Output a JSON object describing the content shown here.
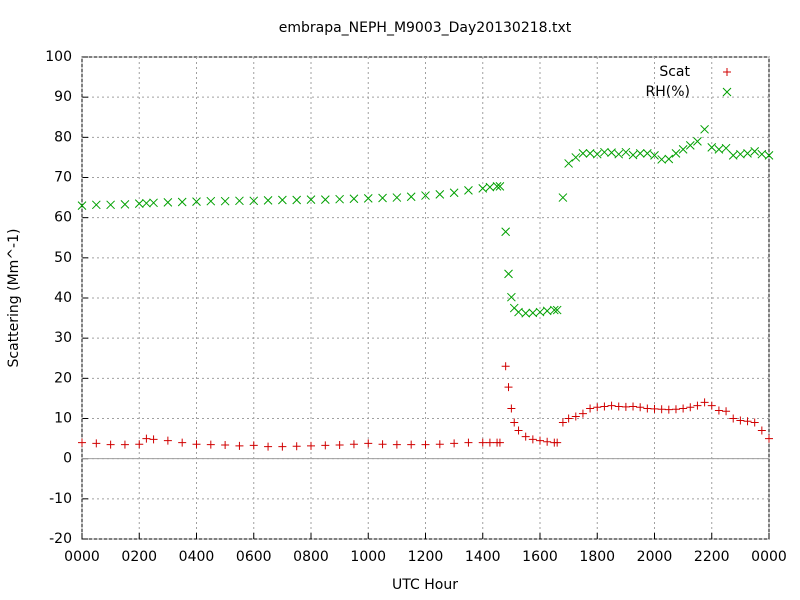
{
  "chart_data": {
    "type": "scatter",
    "title": "embrapa_NEPH_M9003_Day20130218.txt",
    "xlabel": "UTC Hour",
    "ylabel": "Scattering (Mm^-1)",
    "xlim": [
      0,
      24
    ],
    "ylim": [
      -20,
      100
    ],
    "xticks": [
      {
        "value": 0,
        "label": "0000"
      },
      {
        "value": 2,
        "label": "0200"
      },
      {
        "value": 4,
        "label": "0400"
      },
      {
        "value": 6,
        "label": "0600"
      },
      {
        "value": 8,
        "label": "0800"
      },
      {
        "value": 10,
        "label": "1000"
      },
      {
        "value": 12,
        "label": "1200"
      },
      {
        "value": 14,
        "label": "1400"
      },
      {
        "value": 16,
        "label": "1600"
      },
      {
        "value": 18,
        "label": "1800"
      },
      {
        "value": 20,
        "label": "2000"
      },
      {
        "value": 22,
        "label": "2200"
      },
      {
        "value": 24,
        "label": "0000"
      }
    ],
    "yticks": [
      -20,
      -10,
      0,
      10,
      20,
      30,
      40,
      50,
      60,
      70,
      80,
      90,
      100
    ],
    "grid": true,
    "legend": "top-right",
    "x": [
      0,
      0.5,
      1,
      1.5,
      2,
      2.25,
      2.5,
      3,
      3.5,
      4,
      4.5,
      5,
      5.5,
      6,
      6.5,
      7,
      7.5,
      8,
      8.5,
      9,
      9.5,
      10,
      10.5,
      11,
      11.5,
      12,
      12.5,
      13,
      13.5,
      14,
      14.25,
      14.5,
      14.6,
      14.8,
      14.9,
      15,
      15.1,
      15.25,
      15.5,
      15.75,
      16,
      16.25,
      16.5,
      16.6,
      16.8,
      17,
      17.25,
      17.5,
      17.75,
      18,
      18.25,
      18.5,
      18.75,
      19,
      19.25,
      19.5,
      19.75,
      20,
      20.25,
      20.5,
      20.75,
      21,
      21.25,
      21.5,
      21.75,
      22,
      22.25,
      22.5,
      22.75,
      23,
      23.25,
      23.5,
      23.75,
      24
    ],
    "series": [
      {
        "name": "Scat",
        "marker": "+",
        "color": "#d00000",
        "values": [
          4,
          3.8,
          3.5,
          3.5,
          3.6,
          5,
          4.8,
          4.5,
          4,
          3.6,
          3.5,
          3.4,
          3.2,
          3.3,
          3,
          3,
          3.1,
          3.2,
          3.3,
          3.4,
          3.6,
          3.8,
          3.6,
          3.5,
          3.5,
          3.5,
          3.6,
          3.8,
          4,
          4,
          4,
          4,
          4,
          23,
          17.8,
          12.5,
          9,
          7,
          5.5,
          4.8,
          4.5,
          4.2,
          4,
          4,
          9,
          10,
          10.5,
          11.2,
          12.5,
          12.8,
          13,
          13.2,
          13,
          12.9,
          13,
          12.8,
          12.5,
          12.4,
          12.3,
          12.2,
          12.3,
          12.5,
          12.8,
          13.2,
          14,
          13.2,
          12,
          11.8,
          10,
          9.5,
          9.3,
          9,
          7,
          5
        ]
      },
      {
        "name": "RH(%)",
        "marker": "x",
        "color": "#00a000",
        "values": [
          63,
          63.2,
          63.2,
          63.3,
          63.5,
          63.6,
          63.7,
          63.8,
          63.9,
          64,
          64.1,
          64.1,
          64.2,
          64.2,
          64.3,
          64.4,
          64.4,
          64.5,
          64.5,
          64.6,
          64.7,
          64.8,
          64.9,
          65,
          65.2,
          65.5,
          65.8,
          66.2,
          66.8,
          67.3,
          67.6,
          67.8,
          67.8,
          56.5,
          46,
          40.2,
          37.5,
          36.5,
          36.2,
          36.3,
          36.5,
          36.8,
          37,
          37,
          65,
          73.5,
          75,
          76,
          76,
          75.8,
          76.3,
          76.2,
          75.8,
          76.3,
          75.6,
          76,
          76,
          75.5,
          74.5,
          74.6,
          76,
          77,
          78,
          79,
          82,
          77.5,
          77,
          77.3,
          75.5,
          75.8,
          76,
          76.5,
          75.8,
          75.5
        ]
      }
    ]
  }
}
